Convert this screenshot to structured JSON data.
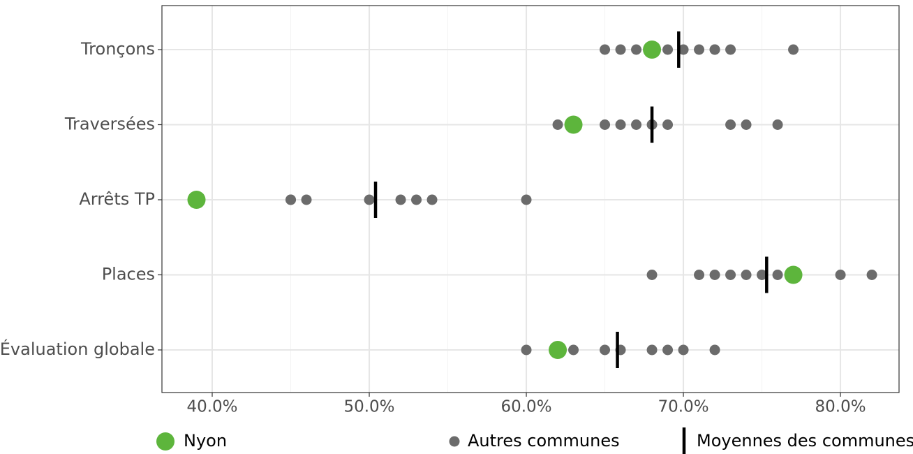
{
  "chart_data": {
    "type": "dot",
    "categories": [
      "Tronçons",
      "Traversées",
      "Arrêts TP",
      "Places",
      "Évaluation globale"
    ],
    "series": [
      {
        "name": "Nyon",
        "color": "#5db53c",
        "values": [
          68,
          63,
          39,
          77,
          62
        ]
      },
      {
        "name": "Autres communes",
        "color": "#6b6b6b",
        "values": [
          [
            65,
            66,
            67,
            69,
            70,
            71,
            72,
            72,
            73,
            77
          ],
          [
            62,
            65,
            66,
            67,
            68,
            69,
            73,
            74,
            76
          ],
          [
            45,
            45,
            46,
            50,
            52,
            53,
            54,
            60
          ],
          [
            68,
            71,
            72,
            73,
            74,
            75,
            76,
            80,
            82
          ],
          [
            60,
            63,
            65,
            66,
            68,
            69,
            70,
            72
          ]
        ]
      },
      {
        "name": "Moyennes des communes",
        "color": "#000000",
        "values": [
          69.7,
          68,
          50.4,
          75.3,
          65.8
        ]
      }
    ],
    "xlim": [
      36.8,
      83.73
    ],
    "xticks": [
      {
        "value": 40,
        "label": "40.0%"
      },
      {
        "value": 50,
        "label": "50.0%"
      },
      {
        "value": 60,
        "label": "60.0%"
      },
      {
        "value": 70,
        "label": "70.0%"
      },
      {
        "value": 80,
        "label": "80.0%"
      }
    ],
    "grid": true,
    "legend": "bottom"
  }
}
